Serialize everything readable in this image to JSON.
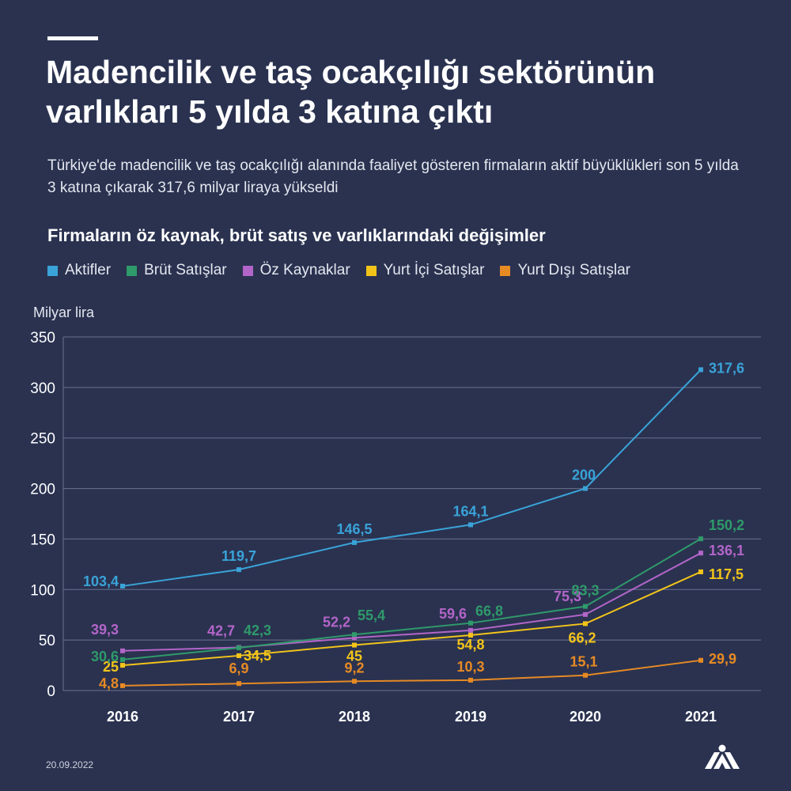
{
  "header": {
    "title": "Madencilik ve taş ocakçılığı sektörünün varlıkları 5 yılda 3 katına çıktı",
    "subtitle": "Türkiye'de madencilik ve taş ocakçılığı alanında faaliyet gösteren firmaların aktif büyüklükleri son 5 yılda 3 katına çıkarak 317,6 milyar liraya yükseldi"
  },
  "footer": {
    "date": "20.09.2022",
    "logo_icon": "aa-logo-icon"
  },
  "colors": {
    "background": "#2a3250",
    "grid": "#6b7391",
    "Aktifler": "#3aa3d8",
    "Brüt Satışlar": "#2f9a6a",
    "Öz Kaynaklar": "#b265c8",
    "Yurt İçi Satışlar": "#f2c41a",
    "Yurt Dışı Satışlar": "#e68a24"
  },
  "chart_data": {
    "type": "line",
    "title": "Firmaların öz kaynak, brüt satış ve varlıklarındaki değişimler",
    "ylabel": "Milyar lira",
    "xlabel": "",
    "x": [
      "2016",
      "2017",
      "2018",
      "2019",
      "2020",
      "2021"
    ],
    "ylim": [
      0,
      350
    ],
    "yticks": [
      0,
      50,
      100,
      150,
      200,
      250,
      300,
      350
    ],
    "grid": true,
    "legend_position": "top",
    "series": [
      {
        "name": "Aktifler",
        "values": [
          103.4,
          119.7,
          146.5,
          164.1,
          200,
          317.6
        ],
        "labels": [
          "103,4",
          "119,7",
          "146,5",
          "164,1",
          "200",
          "317,6"
        ]
      },
      {
        "name": "Brüt Satışlar",
        "values": [
          30.6,
          42.3,
          55.4,
          66.8,
          83.3,
          150.2
        ],
        "labels": [
          "30,6",
          "42,3",
          "55,4",
          "66,8",
          "83,3",
          "150,2"
        ]
      },
      {
        "name": "Öz Kaynaklar",
        "values": [
          39.3,
          42.7,
          52.2,
          59.6,
          75.3,
          136.1
        ],
        "labels": [
          "39,3",
          "42,7",
          "52,2",
          "59,6",
          "75,3",
          "136,1"
        ]
      },
      {
        "name": "Yurt İçi Satışlar",
        "values": [
          25,
          34.5,
          45,
          54.8,
          66.2,
          117.5
        ],
        "labels": [
          "25",
          "34,5",
          "45",
          "54,8",
          "66,2",
          "117,5"
        ]
      },
      {
        "name": "Yurt Dışı Satışlar",
        "values": [
          4.8,
          6.9,
          9.2,
          10.3,
          15.1,
          29.9
        ],
        "labels": [
          "4,8",
          "6,9",
          "9,2",
          "10,3",
          "15,1",
          "29,9"
        ]
      }
    ]
  }
}
